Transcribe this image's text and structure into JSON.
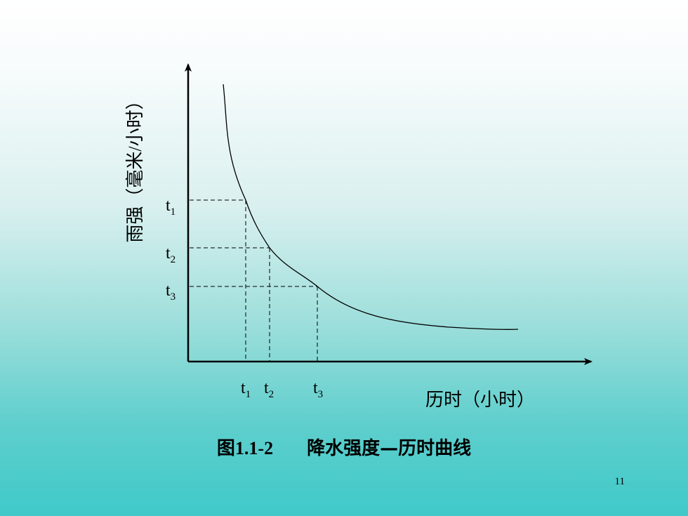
{
  "diagram": {
    "y_axis_label": "雨强（毫米/小时）",
    "x_axis_label": "历时（小时）",
    "y_ticks": [
      {
        "base": "t",
        "sub": "1"
      },
      {
        "base": "t",
        "sub": "2"
      },
      {
        "base": "t",
        "sub": "3"
      }
    ],
    "x_ticks": [
      {
        "base": "t",
        "sub": "1"
      },
      {
        "base": "t",
        "sub": "2"
      },
      {
        "base": "t",
        "sub": "3"
      }
    ]
  },
  "caption": {
    "figure_number": "图1.1-2",
    "title": "降水强度—历时曲线"
  },
  "page_number": "11"
}
